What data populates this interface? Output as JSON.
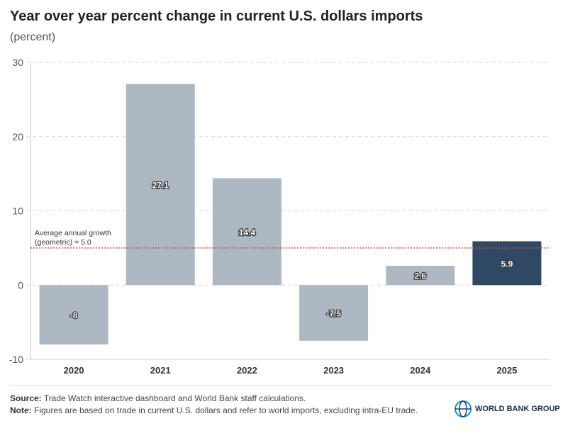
{
  "title": "Year over year percent change in current U.S. dollars imports",
  "subtitle": "(percent)",
  "chart_data": {
    "type": "bar",
    "categories": [
      "2020",
      "2021",
      "2022",
      "2023",
      "2024",
      "2025"
    ],
    "values": [
      -8,
      27.1,
      14.4,
      -7.5,
      2.6,
      5.9
    ],
    "value_labels": [
      "-8",
      "27.1",
      "14.4",
      "-7.5",
      "2.6",
      "5.9"
    ],
    "ylim": [
      -10,
      30
    ],
    "yticks": [
      -10,
      0,
      10,
      20,
      30
    ],
    "grid": true,
    "colors": {
      "default": "#adb8c3",
      "highlight": "#2f4863",
      "reference_line": "#c0504d"
    },
    "highlight_index": 5,
    "reference_line": {
      "value": 5.0,
      "label_line1": "Average annual growth",
      "label_line2": "(geometric) = 5.0"
    }
  },
  "footer": {
    "source_label": "Source:",
    "source_text": " Trade Watch interactive dashboard and World Bank staff calculations.",
    "note_label": "Note:",
    "note_text": " Figures are based on trade in current U.S. dollars and refer to world imports, excluding intra-EU trade."
  },
  "logo": {
    "text": "WORLD BANK GROUP",
    "icon": "globe-icon"
  }
}
